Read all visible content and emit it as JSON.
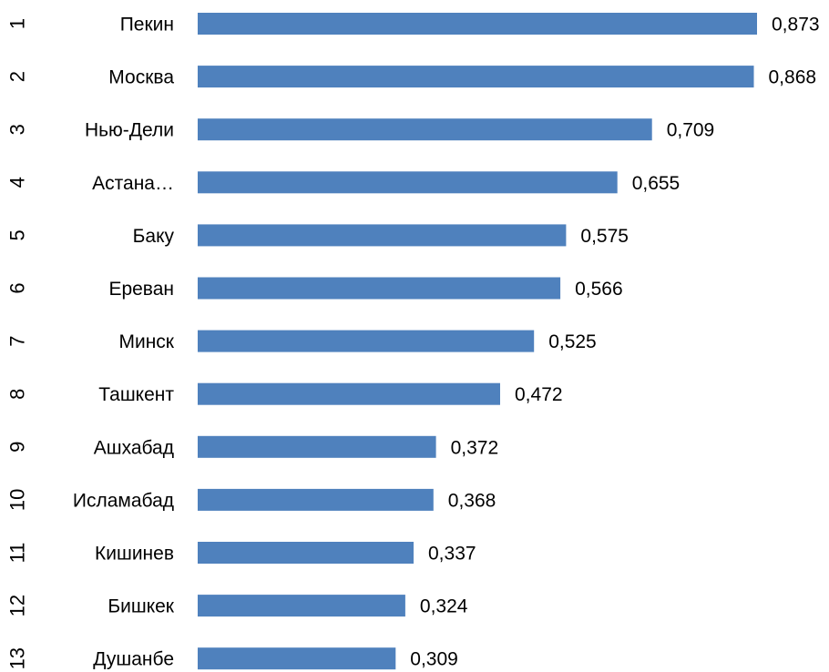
{
  "chart_data": {
    "type": "bar",
    "orientation": "horizontal",
    "categories": [
      "Пекин",
      "Москва",
      "Нью-Дели",
      "Астана…",
      "Баку",
      "Ереван",
      "Минск",
      "Ташкент",
      "Ашхабад",
      "Исламабад",
      "Кишинев",
      "Бишкек",
      "Душанбе"
    ],
    "ranks": [
      "1",
      "2",
      "3",
      "4",
      "5",
      "6",
      "7",
      "8",
      "9",
      "10",
      "11",
      "12",
      "13"
    ],
    "values": [
      0.873,
      0.868,
      0.709,
      0.655,
      0.575,
      0.566,
      0.525,
      0.472,
      0.372,
      0.368,
      0.337,
      0.324,
      0.309
    ],
    "value_labels": [
      "0,873",
      "0,868",
      "0,709",
      "0,655",
      "0,575",
      "0,566",
      "0,525",
      "0,472",
      "0,372",
      "0,368",
      "0,337",
      "0,324",
      "0,309"
    ],
    "xlim": [
      0,
      0.873
    ],
    "bar_color": "#4F81BD",
    "grid": false,
    "legend": "none"
  }
}
